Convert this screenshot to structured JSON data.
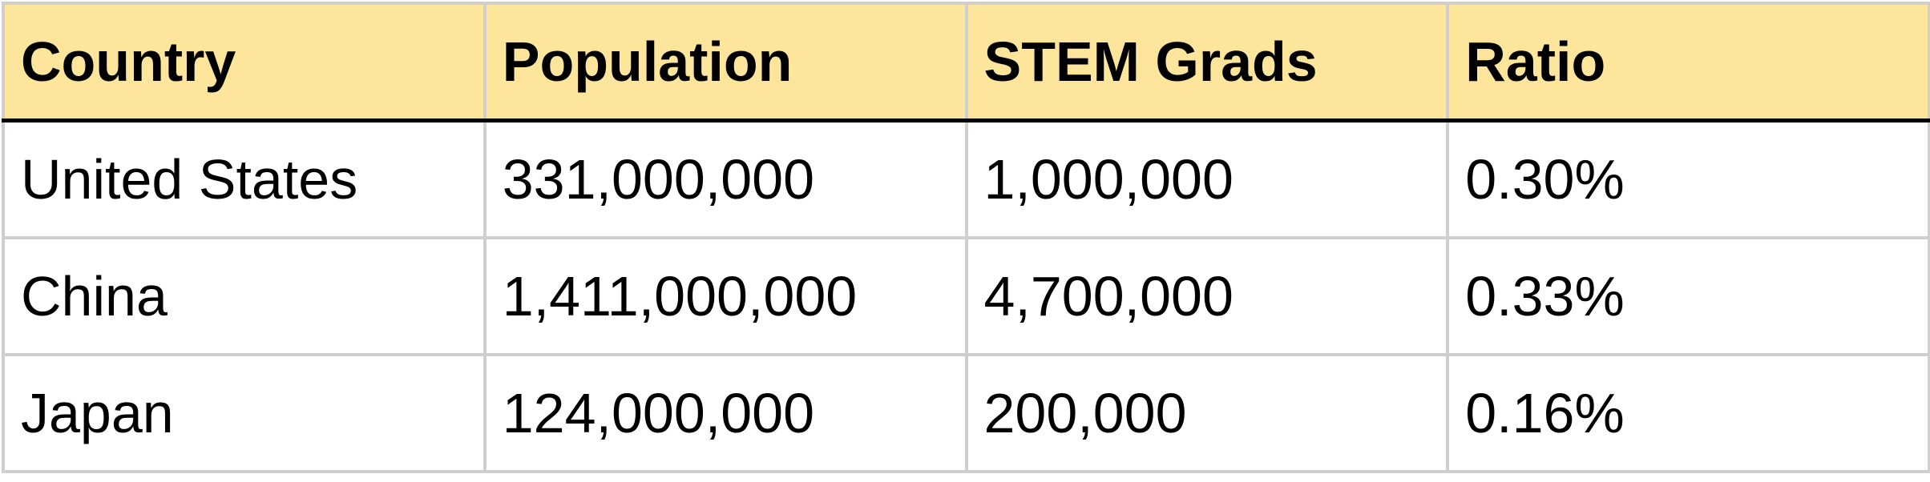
{
  "table": {
    "header": [
      "Country",
      "Population",
      "STEM Grads",
      "Ratio"
    ],
    "rows": [
      [
        "United States",
        "331,000,000",
        "1,000,000",
        "0.30%"
      ],
      [
        "China",
        "1,411,000,000",
        "4,700,000",
        "0.33%"
      ],
      [
        "Japan",
        "124,000,000",
        "200,000",
        "0.16%"
      ]
    ]
  }
}
